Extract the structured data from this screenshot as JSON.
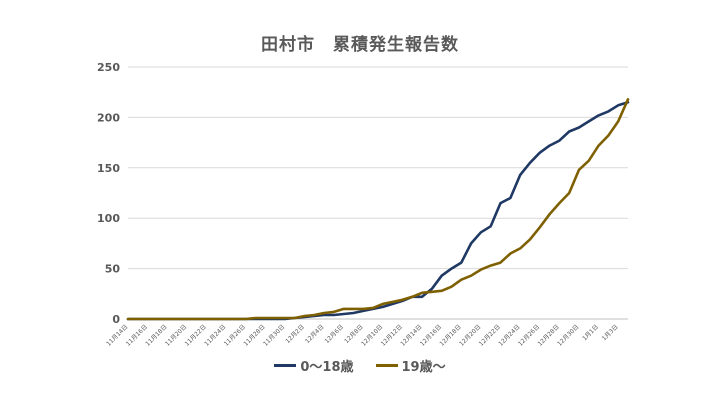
{
  "chart_data": {
    "type": "line",
    "title": "田村市　累積発生報告数",
    "xlabel": "",
    "ylabel": "",
    "ylim": [
      0,
      250
    ],
    "yticks": [
      "0",
      "50",
      "100",
      "150",
      "200",
      "250"
    ],
    "grid": "horizontal",
    "legend_position": "bottom",
    "x": [
      "11月14日",
      "11月15日",
      "11月16日",
      "11月17日",
      "11月18日",
      "11月19日",
      "11月20日",
      "11月21日",
      "11月22日",
      "11月23日",
      "11月24日",
      "11月25日",
      "11月26日",
      "11月27日",
      "11月28日",
      "11月29日",
      "11月30日",
      "12月1日",
      "12月2日",
      "12月3日",
      "12月4日",
      "12月5日",
      "12月6日",
      "12月7日",
      "12月8日",
      "12月9日",
      "12月10日",
      "12月11日",
      "12月12日",
      "12月13日",
      "12月14日",
      "12月15日",
      "12月16日",
      "12月17日",
      "12月18日",
      "12月19日",
      "12月20日",
      "12月21日",
      "12月22日",
      "12月23日",
      "12月24日",
      "12月25日",
      "12月26日",
      "12月27日",
      "12月28日",
      "12月29日",
      "12月30日",
      "12月31日",
      "1月1日",
      "1月2日",
      "1月3日",
      "1月4日"
    ],
    "xtick_labels": [
      "11月14日",
      "11月16日",
      "11月18日",
      "11月20日",
      "11月22日",
      "11月24日",
      "11月26日",
      "11月28日",
      "11月30日",
      "12月2日",
      "12月4日",
      "12月6日",
      "12月8日",
      "12月10日",
      "12月12日",
      "12月14日",
      "12月16日",
      "12月18日",
      "12月20日",
      "12月22日",
      "12月24日",
      "12月26日",
      "12月28日",
      "12月30日",
      "1月1日",
      "1月3日"
    ],
    "series": [
      {
        "name": "0～18歳",
        "color": "#1f3864",
        "values": [
          0,
          0,
          0,
          0,
          0,
          0,
          0,
          0,
          0,
          0,
          0,
          0,
          0,
          0,
          0,
          0,
          0,
          1,
          2,
          3,
          4,
          4,
          5,
          6,
          8,
          10,
          12,
          15,
          18,
          22,
          22,
          30,
          43,
          50,
          56,
          75,
          86,
          92,
          115,
          120,
          143,
          155,
          165,
          172,
          177,
          186,
          190,
          196,
          202,
          206,
          212,
          215
        ]
      },
      {
        "name": "19歳～",
        "color": "#7f6000",
        "values": [
          0,
          0,
          0,
          0,
          0,
          0,
          0,
          0,
          0,
          0,
          0,
          0,
          0,
          1,
          1,
          1,
          1,
          1,
          3,
          4,
          6,
          7,
          10,
          10,
          10,
          11,
          15,
          17,
          19,
          22,
          26,
          27,
          28,
          32,
          39,
          43,
          49,
          53,
          56,
          65,
          70,
          79,
          91,
          104,
          115,
          125,
          148,
          157,
          172,
          182,
          196,
          218
        ]
      }
    ]
  }
}
